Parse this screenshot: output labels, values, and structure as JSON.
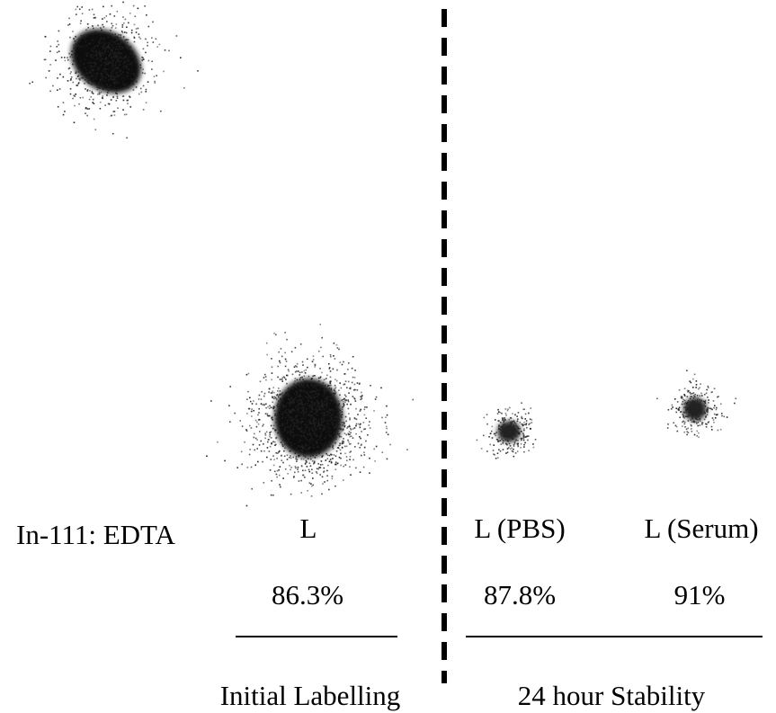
{
  "lanes": [
    {
      "label": "In-111: EDTA"
    },
    {
      "label": "L",
      "percent": "86.3%"
    },
    {
      "label": "L (PBS)",
      "percent": "87.8%"
    },
    {
      "label": "L (Serum)",
      "percent": "91%"
    }
  ],
  "groups": [
    {
      "label": "Initial Labelling"
    },
    {
      "label": "24 hour Stability"
    }
  ]
}
